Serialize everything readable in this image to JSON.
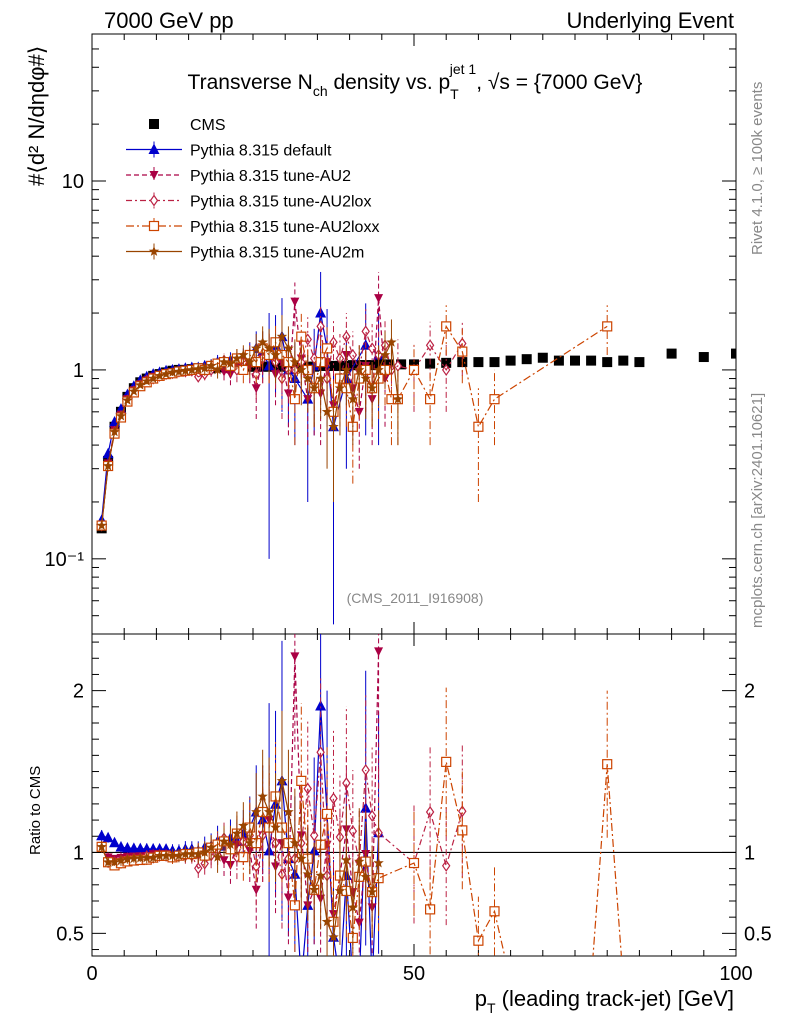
{
  "header": {
    "left": "7000 GeV pp",
    "right": "Underlying Event"
  },
  "side_labels": {
    "rivet": "Rivet 4.1.0, ≥ 100k events",
    "mcplots": "mcplots.cern.ch [arXiv:2401.10621]"
  },
  "watermark": "(CMS_2011_I916908)",
  "chart_data": {
    "type": "line",
    "title_parts": {
      "pre": "Transverse N",
      "sub1": "ch",
      "mid": " density vs. p",
      "sub2": "T",
      "sup2": "jet 1",
      "post": ", √s = {7000 GeV}"
    },
    "ylabel_main": "#⟨d² N/dηdφ#⟩",
    "ylabel_ratio": "Ratio to CMS",
    "xlabel": "p_T (leading track-jet) [GeV]",
    "xlabel_parts": {
      "pre": "p",
      "sub": "T",
      "post": " (leading track-jet) [GeV]"
    },
    "xlim": [
      0,
      100
    ],
    "xticks": [
      0,
      50,
      100
    ],
    "xtick_labels": [
      "0",
      "50",
      "100"
    ],
    "main_yscale": "log",
    "main_ylim": [
      0.04,
      60
    ],
    "main_yticks": [
      0.1,
      1,
      10
    ],
    "main_ytick_labels": [
      "10⁻¹",
      "1",
      "10"
    ],
    "ratio_ylim": [
      0.36,
      2.35
    ],
    "ratio_yticks": [
      0.5,
      1,
      2
    ],
    "ratio_ytick_labels": [
      "0.5",
      "1",
      "2"
    ],
    "legend_position": "top-left",
    "series": [
      {
        "name": "CMS",
        "color": "#000000",
        "marker": "square",
        "style": "none",
        "x": [
          1.5,
          2.5,
          3.5,
          4.5,
          5.5,
          6.5,
          7.5,
          8.5,
          9.5,
          10.5,
          11.5,
          12.5,
          13.5,
          14.5,
          15.5,
          16.5,
          17.5,
          18.5,
          19.5,
          20.5,
          21.5,
          22.5,
          23.5,
          24.5,
          25.5,
          26.5,
          27.5,
          28.5,
          29.5,
          30.5,
          31.5,
          32.5,
          33.5,
          34.5,
          35.5,
          36.5,
          37.5,
          38.5,
          39.5,
          40.5,
          41.5,
          42.5,
          43.5,
          44.5,
          46,
          48,
          50,
          52.5,
          55,
          57.5,
          60,
          62.5,
          65,
          67.5,
          70,
          72.5,
          75,
          77.5,
          80,
          82.5,
          85,
          90,
          95,
          100
        ],
        "y": [
          0.145,
          0.33,
          0.5,
          0.6,
          0.72,
          0.8,
          0.86,
          0.9,
          0.93,
          0.95,
          0.97,
          0.99,
          1.0,
          1.0,
          1.01,
          1.02,
          1.02,
          1.02,
          1.03,
          1.03,
          1.03,
          1.03,
          1.03,
          1.04,
          1.04,
          1.04,
          1.04,
          1.04,
          1.04,
          1.04,
          1.04,
          1.04,
          1.04,
          1.04,
          1.05,
          1.05,
          1.05,
          1.05,
          1.05,
          1.06,
          1.06,
          1.06,
          1.06,
          1.07,
          1.07,
          1.07,
          1.07,
          1.08,
          1.09,
          1.1,
          1.1,
          1.1,
          1.12,
          1.14,
          1.16,
          1.12,
          1.12,
          1.12,
          1.1,
          1.12,
          1.1,
          1.22,
          1.17,
          1.22
        ]
      },
      {
        "name": "Pythia 8.315 default",
        "color": "#0000cc",
        "marker": "triangle-up",
        "style": "solid",
        "x": [
          1.5,
          2.5,
          3.5,
          4.5,
          5.5,
          6.5,
          7.5,
          8.5,
          9.5,
          10.5,
          11.5,
          12.5,
          13.5,
          14.5,
          15.5,
          16.5,
          17.5,
          18.5,
          19.5,
          20.5,
          21.5,
          22.5,
          23.5,
          24.5,
          25.5,
          26.5,
          27.5,
          28.5,
          29.5,
          30.5,
          31.5,
          32.5,
          33.5,
          34.5,
          35.5,
          36.5,
          37.5,
          38.5,
          39.5,
          40.5,
          41.5,
          42.5,
          43.5,
          44.5,
          45.5,
          46.5,
          47.5
        ],
        "y": [
          0.16,
          0.36,
          0.53,
          0.62,
          0.74,
          0.82,
          0.88,
          0.92,
          0.95,
          0.97,
          0.99,
          1.0,
          1.01,
          1.02,
          1.03,
          1.03,
          1.05,
          1.06,
          1.1,
          1.07,
          1.12,
          1.1,
          1.15,
          1.2,
          1.3,
          1.25,
          1.05,
          1.35,
          1.5,
          1.0,
          0.9,
          0.0,
          0.7,
          1.05,
          2.0,
          1.3,
          0.5,
          0.0,
          0.9,
          0.0,
          0.0,
          1.35,
          0.0,
          1.2,
          0.0,
          0.0,
          0.0
        ],
        "yerr": [
          0.005,
          0.01,
          0.01,
          0.02,
          0.02,
          0.02,
          0.02,
          0.03,
          0.03,
          0.03,
          0.03,
          0.04,
          0.04,
          0.05,
          0.05,
          0.06,
          0.07,
          0.08,
          0.1,
          0.1,
          0.12,
          0.14,
          0.15,
          0.2,
          0.3,
          0.35,
          0.95,
          0.6,
          0.9,
          0.5,
          0.5,
          0,
          0.5,
          0.6,
          1.3,
          0.8,
          0.5,
          0,
          0.6,
          0,
          0,
          0.9,
          0,
          0.8,
          0,
          0,
          0
        ]
      },
      {
        "name": "Pythia 8.315 tune-AU2",
        "color": "#aa0044",
        "marker": "triangle-down",
        "style": "dashed",
        "x": [
          1.5,
          2.5,
          3.5,
          4.5,
          5.5,
          6.5,
          7.5,
          8.5,
          9.5,
          10.5,
          11.5,
          12.5,
          13.5,
          14.5,
          15.5,
          16.5,
          17.5,
          18.5,
          19.5,
          20.5,
          21.5,
          22.5,
          23.5,
          24.5,
          25.5,
          26.5,
          27.5,
          28.5,
          29.5,
          30.5,
          31.5,
          32.5,
          33.5,
          34.5,
          35.5,
          36.5,
          37.5,
          38.5,
          39.5,
          40.5,
          41.5,
          42.5,
          43.5,
          44.5,
          45.5,
          46.5,
          47.5
        ],
        "y": [
          0.15,
          0.32,
          0.48,
          0.58,
          0.7,
          0.78,
          0.84,
          0.88,
          0.92,
          0.94,
          0.96,
          0.97,
          0.98,
          0.99,
          1.0,
          1.0,
          1.0,
          1.02,
          1.05,
          0.98,
          0.95,
          1.08,
          1.1,
          1.05,
          0.8,
          1.15,
          1.25,
          0.95,
          1.1,
          0.75,
          2.3,
          1.15,
          0.7,
          0.8,
          0.75,
          1.1,
          0.65,
          0.9,
          1.2,
          0.8,
          0.6,
          1.05,
          0.7,
          2.4,
          0.9,
          0.0,
          0.0
        ],
        "yerr": [
          0.005,
          0.01,
          0.01,
          0.02,
          0.02,
          0.02,
          0.02,
          0.03,
          0.03,
          0.03,
          0.03,
          0.04,
          0.04,
          0.05,
          0.05,
          0.06,
          0.07,
          0.08,
          0.1,
          0.1,
          0.12,
          0.14,
          0.15,
          0.2,
          0.25,
          0.3,
          0.35,
          0.3,
          0.35,
          0.3,
          0.6,
          0.4,
          0.3,
          0.35,
          0.35,
          0.45,
          0.3,
          0.4,
          0.5,
          0.35,
          0.3,
          0.45,
          0.3,
          0.9,
          0.4,
          0,
          0
        ]
      },
      {
        "name": "Pythia 8.315 tune-AU2lox",
        "color": "#bb2244",
        "marker": "diamond-open",
        "style": "dashdot",
        "x": [
          1.5,
          2.5,
          3.5,
          4.5,
          5.5,
          6.5,
          7.5,
          8.5,
          9.5,
          10.5,
          11.5,
          12.5,
          13.5,
          14.5,
          15.5,
          16.5,
          17.5,
          18.5,
          19.5,
          20.5,
          21.5,
          22.5,
          23.5,
          24.5,
          25.5,
          26.5,
          27.5,
          28.5,
          29.5,
          30.5,
          31.5,
          32.5,
          33.5,
          34.5,
          35.5,
          36.5,
          37.5,
          38.5,
          39.5,
          40.5,
          41.5,
          42.5,
          43.5,
          44.5,
          45.5,
          46.5,
          47.5,
          50,
          52.5,
          55,
          57.5
        ],
        "y": [
          0.15,
          0.31,
          0.47,
          0.57,
          0.69,
          0.77,
          0.83,
          0.88,
          0.9,
          0.93,
          0.95,
          0.96,
          0.98,
          0.98,
          0.99,
          0.92,
          0.95,
          1.0,
          1.05,
          1.12,
          1.05,
          1.0,
          1.1,
          1.15,
          0.95,
          1.15,
          1.2,
          1.1,
          0.9,
          1.0,
          1.0,
          1.1,
          1.45,
          1.15,
          1.7,
          0.9,
          1.4,
          1.15,
          1.5,
          1.2,
          1.0,
          1.6,
          1.3,
          1.2,
          1.35,
          1.0,
          1.05,
          1.0,
          1.35,
          1.0,
          1.38
        ],
        "yerr": [
          0.005,
          0.01,
          0.01,
          0.02,
          0.02,
          0.02,
          0.02,
          0.03,
          0.03,
          0.03,
          0.03,
          0.04,
          0.04,
          0.05,
          0.05,
          0.06,
          0.07,
          0.08,
          0.1,
          0.1,
          0.12,
          0.14,
          0.15,
          0.2,
          0.25,
          0.3,
          0.35,
          0.3,
          0.35,
          0.3,
          0.3,
          0.35,
          0.45,
          0.35,
          0.5,
          0.35,
          0.45,
          0.4,
          0.5,
          0.4,
          0.35,
          0.5,
          0.45,
          0.45,
          0.5,
          0.4,
          0.4,
          0.4,
          0.45,
          0.4,
          0.45
        ]
      },
      {
        "name": "Pythia 8.315 tune-AU2loxx",
        "color": "#cc4400",
        "marker": "square-open",
        "style": "dashdot2",
        "x": [
          1.5,
          2.5,
          3.5,
          4.5,
          5.5,
          6.5,
          7.5,
          8.5,
          9.5,
          10.5,
          11.5,
          12.5,
          13.5,
          14.5,
          15.5,
          16.5,
          17.5,
          18.5,
          19.5,
          20.5,
          21.5,
          22.5,
          23.5,
          24.5,
          25.5,
          26.5,
          27.5,
          28.5,
          29.5,
          30.5,
          31.5,
          32.5,
          33.5,
          34.5,
          35.5,
          36.5,
          37.5,
          38.5,
          39.5,
          40.5,
          41.5,
          42.5,
          43.5,
          44.5,
          45.5,
          46.5,
          47.5,
          50,
          52.5,
          55,
          57.5,
          60,
          62.5,
          65,
          67.5,
          70,
          72.5,
          75,
          77.5,
          80,
          82.5,
          85
        ],
        "y": [
          0.15,
          0.31,
          0.46,
          0.56,
          0.68,
          0.76,
          0.82,
          0.86,
          0.9,
          0.93,
          0.95,
          0.96,
          0.98,
          0.99,
          1.0,
          1.02,
          1.0,
          1.05,
          1.08,
          1.1,
          1.05,
          1.15,
          1.0,
          1.2,
          1.1,
          1.3,
          1.2,
          1.4,
          1.2,
          1.1,
          0.7,
          1.5,
          1.0,
          0.8,
          1.1,
          1.3,
          0.6,
          0.9,
          0.8,
          0.5,
          0.9,
          1.0,
          0.8,
          0.9,
          1.0,
          0.7,
          0.7,
          1.0,
          0.7,
          1.7,
          1.25,
          0.5,
          0.7,
          0.0,
          0.0,
          0.0,
          0.0,
          0.0,
          0.0,
          1.7,
          0.0,
          0.0
        ],
        "yerr": [
          0.005,
          0.01,
          0.01,
          0.02,
          0.02,
          0.02,
          0.02,
          0.03,
          0.03,
          0.03,
          0.03,
          0.04,
          0.04,
          0.05,
          0.05,
          0.06,
          0.07,
          0.08,
          0.1,
          0.1,
          0.12,
          0.14,
          0.15,
          0.2,
          0.25,
          0.3,
          0.35,
          0.35,
          0.35,
          0.3,
          0.3,
          0.5,
          0.35,
          0.3,
          0.35,
          0.45,
          0.3,
          0.35,
          0.3,
          0.25,
          0.35,
          0.35,
          0.3,
          0.35,
          0.35,
          0.3,
          0.3,
          0.35,
          0.3,
          0.5,
          0.4,
          0.3,
          0.3,
          0,
          0,
          0,
          0,
          0,
          0,
          0.5,
          0,
          0
        ]
      },
      {
        "name": "Pythia 8.315 tune-AU2m",
        "color": "#994400",
        "marker": "star",
        "style": "solid",
        "x": [
          1.5,
          2.5,
          3.5,
          4.5,
          5.5,
          6.5,
          7.5,
          8.5,
          9.5,
          10.5,
          11.5,
          12.5,
          13.5,
          14.5,
          15.5,
          16.5,
          17.5,
          18.5,
          19.5,
          20.5,
          21.5,
          22.5,
          23.5,
          24.5,
          25.5,
          26.5,
          27.5,
          28.5,
          29.5,
          30.5,
          31.5,
          32.5,
          33.5,
          34.5,
          35.5,
          36.5,
          37.5,
          38.5,
          39.5,
          40.5,
          41.5,
          42.5,
          43.5,
          44.5,
          45.5,
          46.5,
          47.5
        ],
        "y": [
          0.15,
          0.31,
          0.47,
          0.57,
          0.69,
          0.77,
          0.83,
          0.87,
          0.9,
          0.93,
          0.95,
          0.97,
          0.98,
          0.99,
          1.0,
          1.01,
          1.02,
          1.05,
          1.0,
          1.1,
          1.08,
          1.15,
          1.2,
          1.1,
          1.3,
          1.4,
          1.3,
          1.2,
          1.5,
          1.3,
          1.1,
          1.0,
          0.9,
          0.8,
          0.9,
          0.6,
          0.5,
          0.8,
          1.0,
          0.7,
          1.0,
          0.9,
          0.8,
          1.0,
          1.2,
          1.4,
          0.7
        ],
        "yerr": [
          0.005,
          0.01,
          0.01,
          0.02,
          0.02,
          0.02,
          0.02,
          0.03,
          0.03,
          0.03,
          0.03,
          0.04,
          0.04,
          0.05,
          0.05,
          0.06,
          0.07,
          0.08,
          0.1,
          0.1,
          0.12,
          0.14,
          0.15,
          0.2,
          0.25,
          0.3,
          0.35,
          0.35,
          0.45,
          0.4,
          0.35,
          0.35,
          0.3,
          0.3,
          0.35,
          0.3,
          0.3,
          0.35,
          0.35,
          0.3,
          0.35,
          0.35,
          0.3,
          0.35,
          0.4,
          0.45,
          0.3
        ]
      }
    ]
  }
}
